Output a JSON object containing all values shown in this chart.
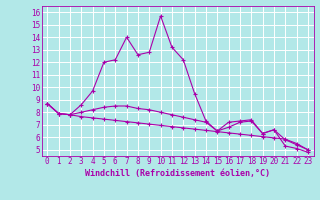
{
  "xlabel": "Windchill (Refroidissement éolien,°C)",
  "bg_color": "#b2e8e8",
  "grid_color": "#ffffff",
  "line_color": "#aa00aa",
  "xlim": [
    -0.5,
    23.5
  ],
  "ylim": [
    4.5,
    16.5
  ],
  "xticks": [
    0,
    1,
    2,
    3,
    4,
    5,
    6,
    7,
    8,
    9,
    10,
    11,
    12,
    13,
    14,
    15,
    16,
    17,
    18,
    19,
    20,
    21,
    22,
    23
  ],
  "yticks": [
    5,
    6,
    7,
    8,
    9,
    10,
    11,
    12,
    13,
    14,
    15,
    16
  ],
  "line1_x": [
    0,
    1,
    2,
    3,
    4,
    5,
    6,
    7,
    8,
    9,
    10,
    11,
    12,
    13,
    14,
    15,
    16,
    17,
    18,
    19,
    20,
    21,
    22,
    23
  ],
  "line1_y": [
    8.7,
    7.9,
    7.8,
    8.6,
    9.7,
    12.0,
    12.2,
    14.0,
    12.6,
    12.8,
    15.7,
    13.2,
    12.2,
    9.5,
    7.3,
    6.5,
    7.2,
    7.3,
    7.4,
    6.3,
    6.6,
    5.3,
    5.1,
    4.8
  ],
  "line2_x": [
    0,
    1,
    2,
    3,
    4,
    5,
    6,
    7,
    8,
    9,
    10,
    11,
    12,
    13,
    14,
    15,
    16,
    17,
    18,
    19,
    20,
    21,
    22,
    23
  ],
  "line2_y": [
    8.7,
    7.9,
    7.8,
    7.65,
    7.55,
    7.45,
    7.35,
    7.25,
    7.15,
    7.05,
    6.95,
    6.85,
    6.75,
    6.65,
    6.55,
    6.45,
    6.35,
    6.25,
    6.15,
    6.05,
    5.95,
    5.85,
    5.5,
    5.0
  ],
  "line3_x": [
    0,
    1,
    2,
    3,
    4,
    5,
    6,
    7,
    8,
    9,
    10,
    11,
    12,
    13,
    14,
    15,
    16,
    17,
    18,
    19,
    20,
    21,
    22,
    23
  ],
  "line3_y": [
    8.7,
    7.9,
    7.8,
    8.0,
    8.2,
    8.4,
    8.5,
    8.5,
    8.3,
    8.2,
    8.0,
    7.8,
    7.6,
    7.4,
    7.2,
    6.5,
    6.8,
    7.2,
    7.3,
    6.3,
    6.6,
    5.8,
    5.4,
    5.0
  ],
  "marker": "+",
  "markersize": 3,
  "linewidth": 0.8,
  "label_fontsize": 6,
  "tick_fontsize": 5.5
}
